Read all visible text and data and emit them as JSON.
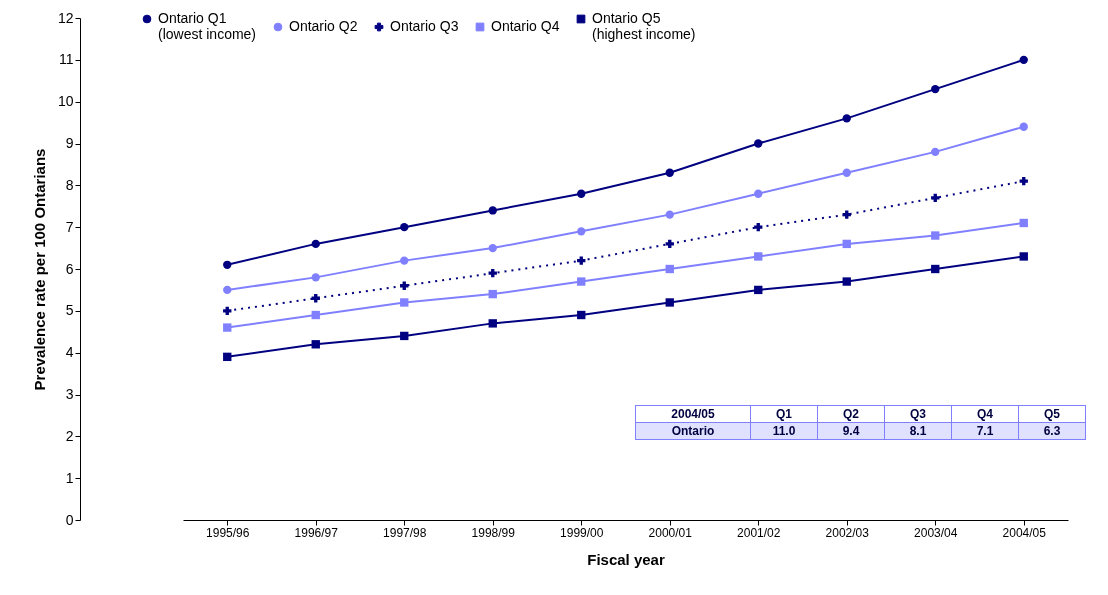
{
  "chart_data": {
    "type": "line",
    "xlabel": "Fiscal year",
    "ylabel": "Prevalence rate per 100 Ontarians",
    "categories": [
      "1995/96",
      "1996/97",
      "1997/98",
      "1998/99",
      "1999/00",
      "2000/01",
      "2001/02",
      "2002/03",
      "2003/04",
      "2004/05"
    ],
    "series": [
      {
        "name": "Ontario Q1\n(lowest income)",
        "color": "#000080",
        "marker": "circle",
        "line_style": "solid",
        "values": [
          6.1,
          6.6,
          7.0,
          7.4,
          7.8,
          8.3,
          9.0,
          9.6,
          10.3,
          11.0
        ]
      },
      {
        "name": "Ontario Q2",
        "color": "#8080ff",
        "marker": "circle",
        "line_style": "solid",
        "values": [
          5.5,
          5.8,
          6.2,
          6.5,
          6.9,
          7.3,
          7.8,
          8.3,
          8.8,
          9.4
        ]
      },
      {
        "name": "Ontario Q3",
        "color": "#000080",
        "marker": "cross",
        "line_style": "dotted",
        "values": [
          5.0,
          5.3,
          5.6,
          5.9,
          6.2,
          6.6,
          7.0,
          7.3,
          7.7,
          8.1
        ]
      },
      {
        "name": "Ontario Q4",
        "color": "#8080ff",
        "marker": "square",
        "line_style": "solid",
        "values": [
          4.6,
          4.9,
          5.2,
          5.4,
          5.7,
          6.0,
          6.3,
          6.6,
          6.8,
          7.1
        ]
      },
      {
        "name": "Ontario Q5\n(highest income)",
        "color": "#000080",
        "marker": "square",
        "line_style": "solid",
        "values": [
          3.9,
          4.2,
          4.4,
          4.7,
          4.9,
          5.2,
          5.5,
          5.7,
          6.0,
          6.3
        ]
      }
    ],
    "ylim": [
      0,
      12
    ],
    "yticks": [
      0,
      1,
      2,
      3,
      4,
      5,
      6,
      7,
      8,
      9,
      10,
      11,
      12
    ],
    "grid": false,
    "legend": "top",
    "annotations": [
      "Q1",
      "Q2",
      "Q3",
      "Q4",
      "Q5",
      "Ontario",
      "11.0",
      "9.4",
      "8.1",
      "7.1",
      "6.3"
    ]
  }
}
